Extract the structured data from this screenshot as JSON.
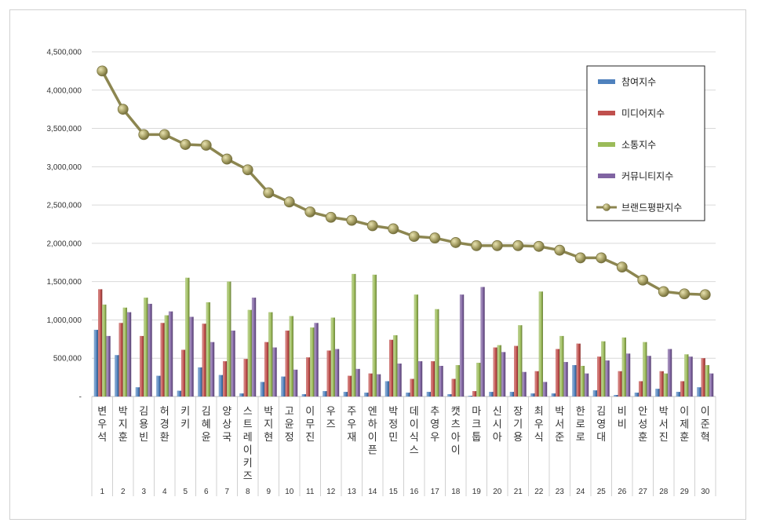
{
  "chart_data": {
    "type": "bar",
    "title": "",
    "xlabel": "",
    "ylabel": "",
    "ylim": [
      0,
      4500000
    ],
    "yticks": [
      "-",
      "500,000",
      "1,000,000",
      "1,500,000",
      "2,000,000",
      "2,500,000",
      "3,000,000",
      "3,500,000",
      "4,000,000",
      "4,500,000"
    ],
    "grid": true,
    "legend_position": "top-right",
    "categories": [
      "변우석",
      "박지훈",
      "김용빈",
      "허경환",
      "키키",
      "김혜윤",
      "양상국",
      "스트레이키즈",
      "박지현",
      "고윤정",
      "이무진",
      "우즈",
      "주우재",
      "엔하이픈",
      "박정민",
      "데이식스",
      "추영우",
      "캣츠아이",
      "마크툽",
      "신시아",
      "장기용",
      "최우식",
      "박서준",
      "한로로",
      "김영대",
      "비비",
      "안성훈",
      "박서진",
      "이제훈",
      "이준혁"
    ],
    "ranks": [
      "1",
      "2",
      "3",
      "4",
      "5",
      "6",
      "7",
      "8",
      "9",
      "10",
      "11",
      "12",
      "13",
      "14",
      "15",
      "16",
      "17",
      "18",
      "19",
      "20",
      "21",
      "22",
      "23",
      "24",
      "25",
      "26",
      "27",
      "28",
      "29",
      "30"
    ],
    "series": [
      {
        "name": "참여지수",
        "type": "bar",
        "color": "#4f81bd",
        "values": [
          870000,
          540000,
          120000,
          270000,
          75000,
          380000,
          280000,
          40000,
          190000,
          260000,
          30000,
          70000,
          60000,
          50000,
          200000,
          50000,
          60000,
          30000,
          10000,
          60000,
          60000,
          40000,
          40000,
          410000,
          80000,
          20000,
          50000,
          100000,
          60000,
          120000
        ]
      },
      {
        "name": "미디어지수",
        "type": "bar",
        "color": "#c0504d",
        "values": [
          1400000,
          960000,
          790000,
          960000,
          610000,
          950000,
          460000,
          490000,
          710000,
          860000,
          510000,
          600000,
          270000,
          300000,
          740000,
          230000,
          460000,
          230000,
          70000,
          640000,
          660000,
          330000,
          620000,
          690000,
          520000,
          330000,
          200000,
          330000,
          200000,
          500000
        ]
      },
      {
        "name": "소통지수",
        "type": "bar",
        "color": "#9bbb59",
        "values": [
          1200000,
          1160000,
          1290000,
          1060000,
          1550000,
          1230000,
          1500000,
          1130000,
          1100000,
          1050000,
          900000,
          1030000,
          1600000,
          1590000,
          800000,
          1330000,
          1140000,
          410000,
          440000,
          670000,
          930000,
          1370000,
          790000,
          400000,
          720000,
          770000,
          710000,
          300000,
          550000,
          410000
        ]
      },
      {
        "name": "커뮤니티지수",
        "type": "bar",
        "color": "#8064a2",
        "values": [
          790000,
          1100000,
          1210000,
          1110000,
          1040000,
          710000,
          860000,
          1290000,
          640000,
          350000,
          960000,
          620000,
          360000,
          290000,
          430000,
          460000,
          400000,
          1330000,
          1430000,
          580000,
          320000,
          190000,
          450000,
          300000,
          470000,
          560000,
          530000,
          620000,
          520000,
          300000
        ]
      },
      {
        "name": "브랜드평판지수",
        "type": "line",
        "color": "#8c8650",
        "values": [
          4250000,
          3750000,
          3420000,
          3420000,
          3290000,
          3280000,
          3100000,
          2960000,
          2660000,
          2540000,
          2410000,
          2340000,
          2300000,
          2230000,
          2190000,
          2090000,
          2070000,
          2010000,
          1970000,
          1970000,
          1970000,
          1960000,
          1910000,
          1810000,
          1810000,
          1690000,
          1520000,
          1370000,
          1340000,
          1330000
        ]
      }
    ]
  }
}
